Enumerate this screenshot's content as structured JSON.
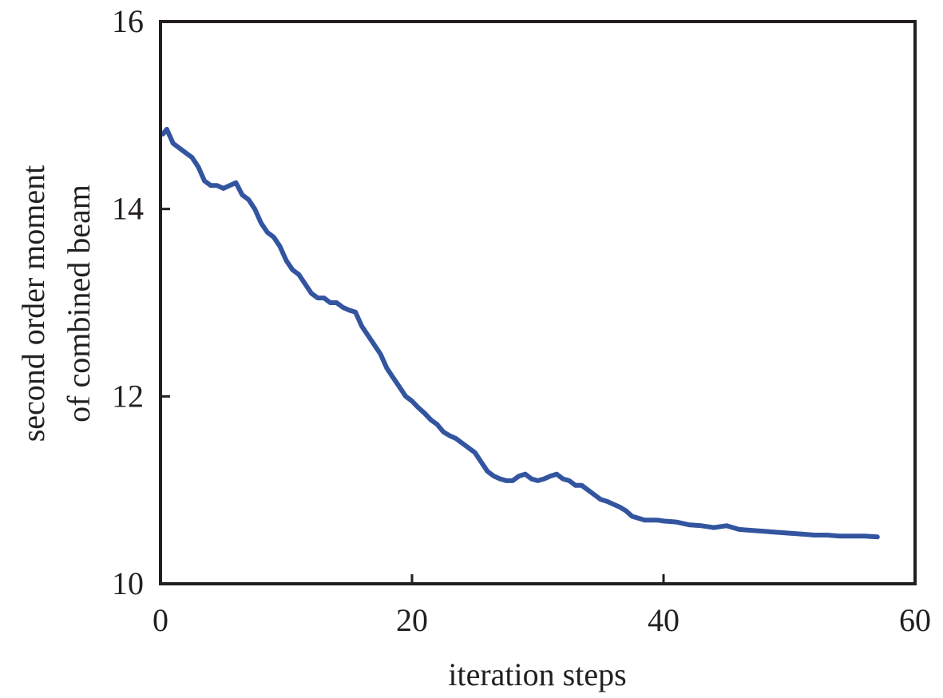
{
  "chart_data": {
    "type": "line",
    "title": "",
    "xlabel": "iteration steps",
    "ylabel_lines": [
      "second order moment",
      "of combined beam"
    ],
    "xlim": [
      0,
      60
    ],
    "ylim": [
      10,
      16
    ],
    "x_ticks": [
      0,
      20,
      40,
      60
    ],
    "y_ticks": [
      10,
      12,
      14,
      16
    ],
    "grid": false,
    "line_color": "#3355a0",
    "axis_color": "#231f20",
    "series": [
      {
        "x": [
          0.2,
          0.5,
          1,
          1.5,
          2,
          2.5,
          3,
          3.5,
          4,
          4.5,
          5,
          5.5,
          6,
          6.5,
          7,
          7.5,
          8,
          8.5,
          9,
          9.5,
          10,
          10.5,
          11,
          11.5,
          12,
          12.5,
          13,
          13.5,
          14,
          14.5,
          15,
          15.5,
          16,
          16.5,
          17,
          17.5,
          18,
          18.5,
          19,
          19.5,
          20,
          20.5,
          21,
          21.5,
          22,
          22.5,
          23,
          23.5,
          24,
          24.5,
          25,
          25.5,
          26,
          26.5,
          27,
          27.5,
          28,
          28.5,
          29,
          29.5,
          30,
          30.5,
          31,
          31.5,
          32,
          32.5,
          33,
          33.5,
          34,
          34.5,
          35,
          35.5,
          36,
          36.5,
          37,
          37.5,
          38,
          38.5,
          39,
          39.5,
          40,
          41,
          42,
          43,
          44,
          45,
          46,
          47,
          48,
          49,
          50,
          51,
          52,
          53,
          54,
          55,
          56,
          57
        ],
        "y": [
          14.8,
          14.85,
          14.7,
          14.65,
          14.6,
          14.55,
          14.45,
          14.3,
          14.25,
          14.25,
          14.22,
          14.25,
          14.28,
          14.15,
          14.1,
          14.0,
          13.85,
          13.75,
          13.7,
          13.6,
          13.45,
          13.35,
          13.3,
          13.2,
          13.1,
          13.05,
          13.05,
          13.0,
          13.0,
          12.95,
          12.92,
          12.9,
          12.75,
          12.65,
          12.55,
          12.45,
          12.3,
          12.2,
          12.1,
          12.0,
          11.95,
          11.88,
          11.82,
          11.75,
          11.7,
          11.62,
          11.58,
          11.55,
          11.5,
          11.45,
          11.4,
          11.3,
          11.2,
          11.15,
          11.12,
          11.1,
          11.1,
          11.15,
          11.17,
          11.12,
          11.1,
          11.12,
          11.15,
          11.17,
          11.12,
          11.1,
          11.05,
          11.05,
          11.0,
          10.95,
          10.9,
          10.88,
          10.85,
          10.82,
          10.78,
          10.72,
          10.7,
          10.68,
          10.68,
          10.68,
          10.67,
          10.66,
          10.63,
          10.62,
          10.6,
          10.62,
          10.58,
          10.57,
          10.56,
          10.55,
          10.54,
          10.53,
          10.52,
          10.52,
          10.51,
          10.51,
          10.51,
          10.5
        ]
      }
    ]
  }
}
